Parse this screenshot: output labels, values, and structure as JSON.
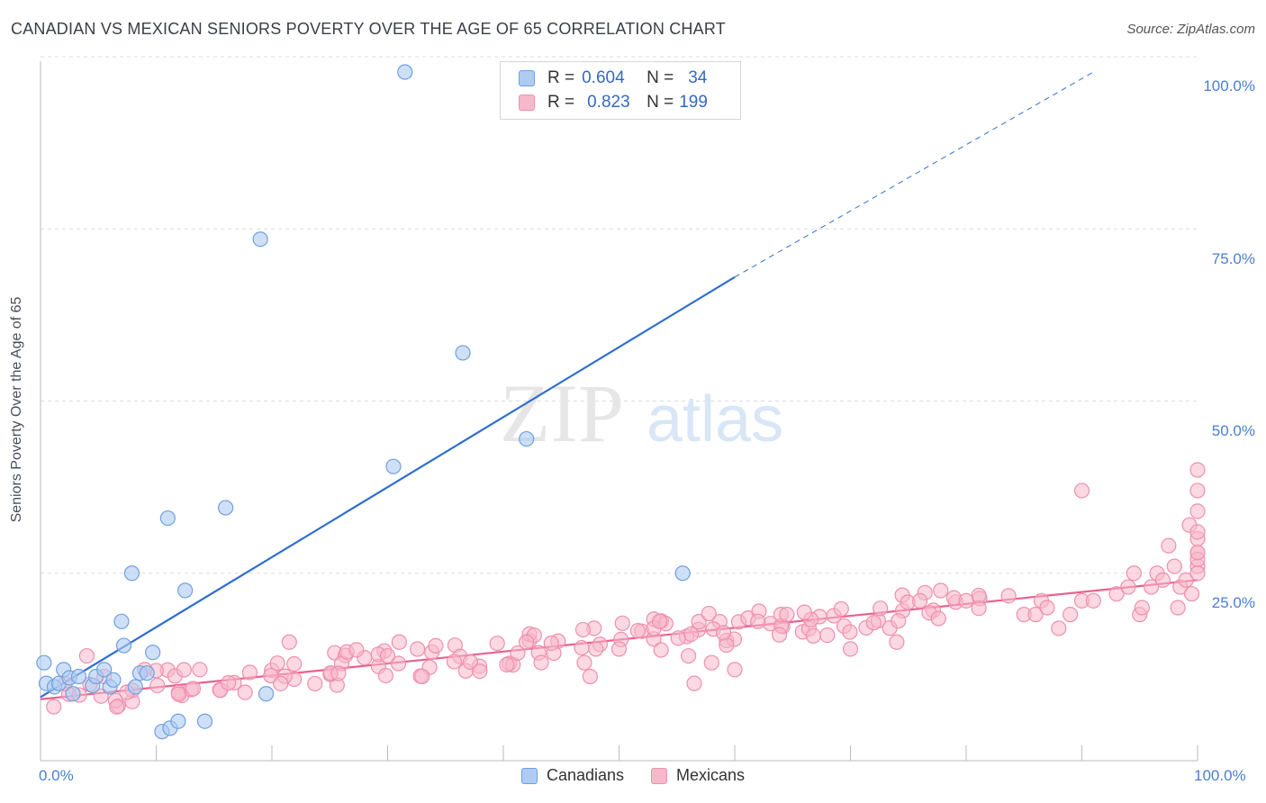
{
  "title": "CANADIAN VS MEXICAN SENIORS POVERTY OVER THE AGE OF 65 CORRELATION CHART",
  "source": "Source: ZipAtlas.com",
  "watermark": {
    "zip": "ZIP",
    "atlas": "atlas"
  },
  "legend": {
    "rows": [
      {
        "r_label": "R =",
        "r_value": "0.604",
        "n_label": "N =",
        "n_value": "34"
      },
      {
        "r_label": "R =",
        "r_value": "0.823",
        "n_label": "N =",
        "n_value": "199"
      }
    ]
  },
  "bottom_legend": {
    "canadians": "Canadians",
    "mexicans": "Mexicans"
  },
  "colors": {
    "canadians_fill": "#aecbf2",
    "canadians_stroke": "#6fa0e0",
    "canadians_line": "#2f6fd0",
    "mexicans_fill": "#f7b8cb",
    "mexicans_stroke": "#ee8fae",
    "mexicans_line": "#e8618e",
    "grid": "#dcdcdc",
    "axis": "#bbbbbb"
  },
  "chart_data": {
    "type": "scatter",
    "title": "CANADIAN VS MEXICAN SENIORS POVERTY OVER THE AGE OF 65 CORRELATION CHART",
    "xlabel": "",
    "ylabel": "Seniors Poverty Over the Age of 65",
    "xlim": [
      0,
      100
    ],
    "ylim": [
      0,
      100
    ],
    "x_tick_labels": [
      "0.0%",
      "100.0%"
    ],
    "y_ticks": [
      25,
      50,
      75,
      100
    ],
    "y_tick_labels": [
      "25.0%",
      "50.0%",
      "75.0%",
      "100.0%"
    ],
    "series": [
      {
        "name": "Canadians",
        "r": 0.604,
        "n": 34,
        "points": [
          [
            0.3,
            12.0
          ],
          [
            0.5,
            9.0
          ],
          [
            1.2,
            8.5
          ],
          [
            1.6,
            9.0
          ],
          [
            2.0,
            11.0
          ],
          [
            2.5,
            9.8
          ],
          [
            2.8,
            7.5
          ],
          [
            3.3,
            10.0
          ],
          [
            4.5,
            8.7
          ],
          [
            4.8,
            10.0
          ],
          [
            5.5,
            11.0
          ],
          [
            6.0,
            8.5
          ],
          [
            6.3,
            9.5
          ],
          [
            7.0,
            18.0
          ],
          [
            7.2,
            14.5
          ],
          [
            7.9,
            25.0
          ],
          [
            8.2,
            8.5
          ],
          [
            8.6,
            10.5
          ],
          [
            9.2,
            10.5
          ],
          [
            9.7,
            13.5
          ],
          [
            10.5,
            2.0
          ],
          [
            11.0,
            33.0
          ],
          [
            11.2,
            2.5
          ],
          [
            11.9,
            3.5
          ],
          [
            12.5,
            22.5
          ],
          [
            14.2,
            3.5
          ],
          [
            16.0,
            34.5
          ],
          [
            19.0,
            73.5
          ],
          [
            19.5,
            7.5
          ],
          [
            30.5,
            40.5
          ],
          [
            31.5,
            100
          ],
          [
            36.5,
            57.0
          ],
          [
            42.0,
            44.5
          ],
          [
            55.5,
            25.0
          ]
        ],
        "trend": {
          "x0": 0,
          "y0": 7.0,
          "x1": 60,
          "y1": 68.0,
          "dash_to_x": 91,
          "dash_to_y": 100
        }
      },
      {
        "name": "Mexicans",
        "r": 0.823,
        "n": 199,
        "trend": {
          "x0": 0,
          "y0": 6.7,
          "x1": 100,
          "y1": 24.0
        },
        "outliers": [
          [
            4,
            13
          ],
          [
            5.5,
            10
          ],
          [
            9,
            11
          ],
          [
            21.5,
            15
          ],
          [
            30,
            13
          ],
          [
            31,
            15
          ],
          [
            42,
            15
          ],
          [
            47,
            12
          ],
          [
            47.5,
            10
          ],
          [
            48,
            14
          ],
          [
            50,
            14
          ],
          [
            53,
            17
          ],
          [
            53.5,
            18
          ],
          [
            56,
            13
          ],
          [
            56.5,
            9
          ],
          [
            58,
            12
          ],
          [
            60,
            11
          ],
          [
            62,
            18
          ],
          [
            64,
            19
          ],
          [
            64.5,
            19
          ],
          [
            68,
            16
          ],
          [
            70,
            14
          ],
          [
            74,
            15
          ],
          [
            76,
            21
          ],
          [
            80,
            21
          ],
          [
            85,
            19
          ],
          [
            86,
            19
          ],
          [
            86.5,
            21
          ],
          [
            87,
            20
          ],
          [
            88,
            17
          ],
          [
            89,
            19
          ],
          [
            90,
            21
          ],
          [
            91,
            21
          ],
          [
            93,
            22
          ],
          [
            94,
            23
          ],
          [
            94.5,
            25
          ],
          [
            95,
            19
          ],
          [
            95.2,
            20
          ],
          [
            96,
            23
          ],
          [
            96.5,
            25
          ],
          [
            97,
            24
          ],
          [
            97.5,
            29
          ],
          [
            98,
            26
          ],
          [
            98.3,
            20
          ],
          [
            98.5,
            23
          ],
          [
            99,
            24
          ],
          [
            99.3,
            32
          ],
          [
            99.5,
            22
          ],
          [
            100,
            26
          ],
          [
            100.3,
            30
          ],
          [
            100.5,
            25
          ],
          [
            100.8,
            34
          ],
          [
            101,
            28
          ],
          [
            101.3,
            37
          ],
          [
            101.6,
            27
          ],
          [
            102,
            31
          ],
          [
            102.3,
            28
          ],
          [
            103,
            40
          ],
          [
            90,
            37
          ]
        ]
      }
    ]
  }
}
